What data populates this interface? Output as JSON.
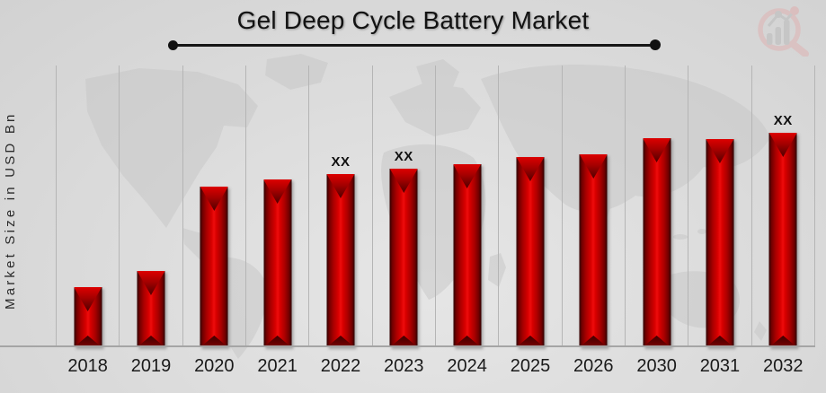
{
  "header": {
    "title": "Gel Deep Cycle Battery Market"
  },
  "logo": {
    "icon": "bar-chart-magnifier-logo",
    "ring_color": "#dfb3b3",
    "bars_color": "#bbbbbb"
  },
  "chart_data": {
    "type": "bar",
    "title": "Gel Deep Cycle Battery Market",
    "ylabel": "Market Size in USD Bn",
    "xlabel": "",
    "categories": [
      "2018",
      "2019",
      "2020",
      "2021",
      "2022",
      "2023",
      "2024",
      "2025",
      "2026",
      "2030",
      "2031",
      "2032"
    ],
    "values_relative": [
      67,
      85,
      179,
      187,
      193,
      199,
      204,
      212,
      215,
      233,
      232,
      239
    ],
    "values_unit": "relative bar height in px (numeric axis not labeled in source)",
    "data_labels": [
      "",
      "",
      "",
      "",
      "XX",
      "XX",
      "",
      "",
      "",
      "",
      "",
      "XX"
    ],
    "bar_color": "#c00000",
    "bar_edge_color": "#4a0000",
    "gridlines": "vertical-only",
    "numeric_axis_ticks": false,
    "legend": "none",
    "background_watermark": "world-map"
  },
  "colors": {
    "background": "#dedede",
    "gridline": "#b5b5b5",
    "axis_line": "#a5a5a5",
    "text": "#1a1a1a",
    "map": "#c7c7c7"
  }
}
